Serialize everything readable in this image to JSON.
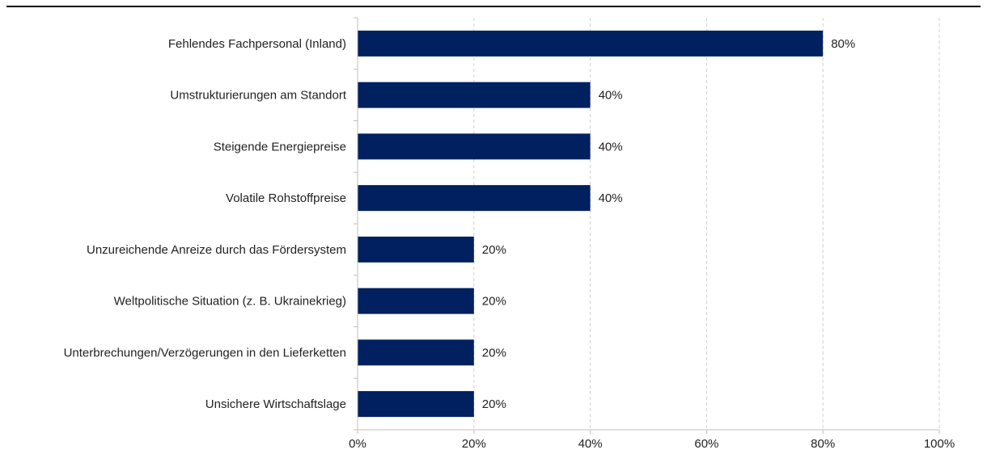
{
  "chart_data": {
    "type": "bar",
    "orientation": "horizontal",
    "title": "",
    "xlabel": "",
    "ylabel": "",
    "categories": [
      "Fehlendes Fachpersonal (Inland)",
      "Umstrukturierungen am Standort",
      "Steigende Energiepreise",
      "Volatile Rohstoffpreise",
      "Unzureichende Anreize durch das Fördersystem",
      "Weltpolitische Situation (z. B. Ukrainekrieg)",
      "Unterbrechungen/Verzögerungen in den Lieferketten",
      "Unsichere Wirtschaftslage"
    ],
    "values": [
      80,
      40,
      40,
      40,
      20,
      20,
      20,
      20
    ],
    "value_labels": [
      "80%",
      "40%",
      "40%",
      "40%",
      "20%",
      "20%",
      "20%",
      "20%"
    ],
    "xlim": [
      0,
      100
    ],
    "x_ticks": [
      0,
      20,
      40,
      60,
      80,
      100
    ],
    "x_tick_labels": [
      "0%",
      "20%",
      "40%",
      "60%",
      "80%",
      "100%"
    ],
    "grid": "vertical dashed",
    "legend": "none",
    "colors": {
      "bar": "#002060",
      "grid": "#d0d0d0",
      "axis": "#bfbfbf",
      "header_line": "#000000"
    }
  }
}
